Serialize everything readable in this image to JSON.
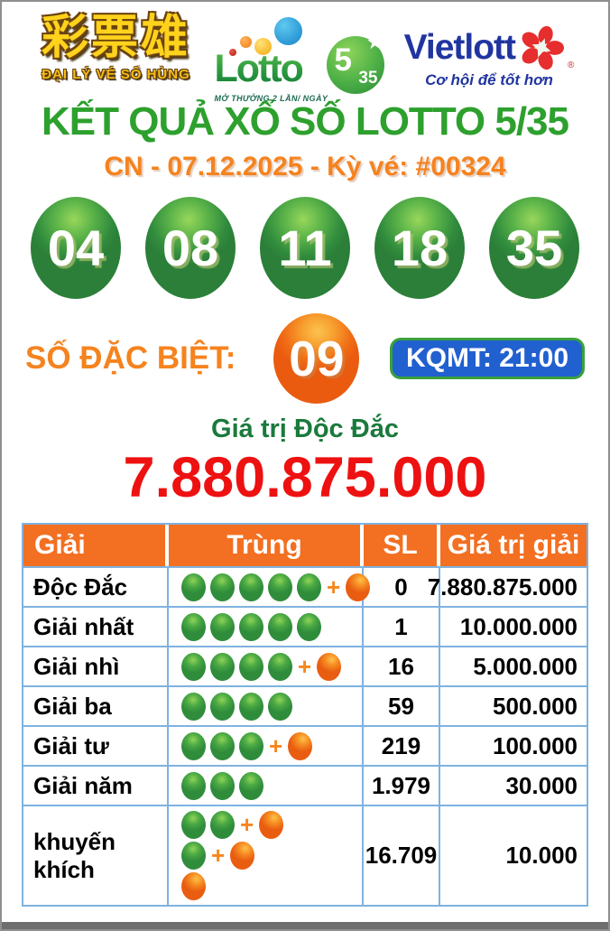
{
  "header": {
    "agent": {
      "chinese": "彩票雄",
      "caption": "ĐẠI LÝ VÉ SỐ HÙNG"
    },
    "lotto": {
      "brand": "Lotto",
      "big": "5",
      "small": "35",
      "star": "★",
      "tagline": "MỞ THƯỞNG 2 LẦN/ NGÀY"
    },
    "vietlott": {
      "brand": "Vietlott",
      "reg": "®",
      "tagline": "Cơ hội để tốt hơn"
    }
  },
  "title": "KẾT QUẢ XỔ SỐ LOTTO 5/35",
  "draw_info": "CN - 07.12.2025 - Kỳ vé: #00324",
  "winning_numbers": [
    "04",
    "08",
    "11",
    "18",
    "35"
  ],
  "special": {
    "label": "SỐ ĐẶC BIỆT:",
    "number": "09",
    "badge": "KQMT: 21:00"
  },
  "jackpot": {
    "label": "Giá trị Độc Đắc",
    "value": "7.880.875.000"
  },
  "table": {
    "headers": [
      "Giải",
      "Trùng",
      "SL",
      "Giá trị giải"
    ],
    "plus_symbol": "+",
    "rows": [
      {
        "label": "Độc Đắc",
        "match_lines": [
          {
            "green": 5,
            "orange": 1
          }
        ],
        "sl": "0",
        "prize": "7.880.875.000"
      },
      {
        "label": "Giải nhất",
        "match_lines": [
          {
            "green": 5,
            "orange": 0
          }
        ],
        "sl": "1",
        "prize": "10.000.000"
      },
      {
        "label": "Giải nhì",
        "match_lines": [
          {
            "green": 4,
            "orange": 1
          }
        ],
        "sl": "16",
        "prize": "5.000.000"
      },
      {
        "label": "Giải ba",
        "match_lines": [
          {
            "green": 4,
            "orange": 0
          }
        ],
        "sl": "59",
        "prize": "500.000"
      },
      {
        "label": "Giải tư",
        "match_lines": [
          {
            "green": 3,
            "orange": 1
          }
        ],
        "sl": "219",
        "prize": "100.000"
      },
      {
        "label": "Giải năm",
        "match_lines": [
          {
            "green": 3,
            "orange": 0
          }
        ],
        "sl": "1.979",
        "prize": "30.000"
      },
      {
        "label": "khuyến khích",
        "match_lines": [
          {
            "green": 2,
            "orange": 1
          },
          {
            "green": 1,
            "orange": 1
          },
          {
            "green": 0,
            "orange": 1
          }
        ],
        "sl": "16.709",
        "prize": "10.000"
      }
    ]
  },
  "colors": {
    "title_green": "#2da02d",
    "accent_orange": "#f5831f",
    "jackpot_red": "#ee1111",
    "jackpot_label_green": "#1a7a3c",
    "table_header_orange": "#f36f21",
    "table_border_blue": "#7fb2e0",
    "badge_blue": "#2160cf",
    "badge_border_green": "#3aa23a",
    "ball_green": "#3ba13c",
    "ball_orange": "#f07818",
    "vietlott_blue": "#2135a0"
  }
}
